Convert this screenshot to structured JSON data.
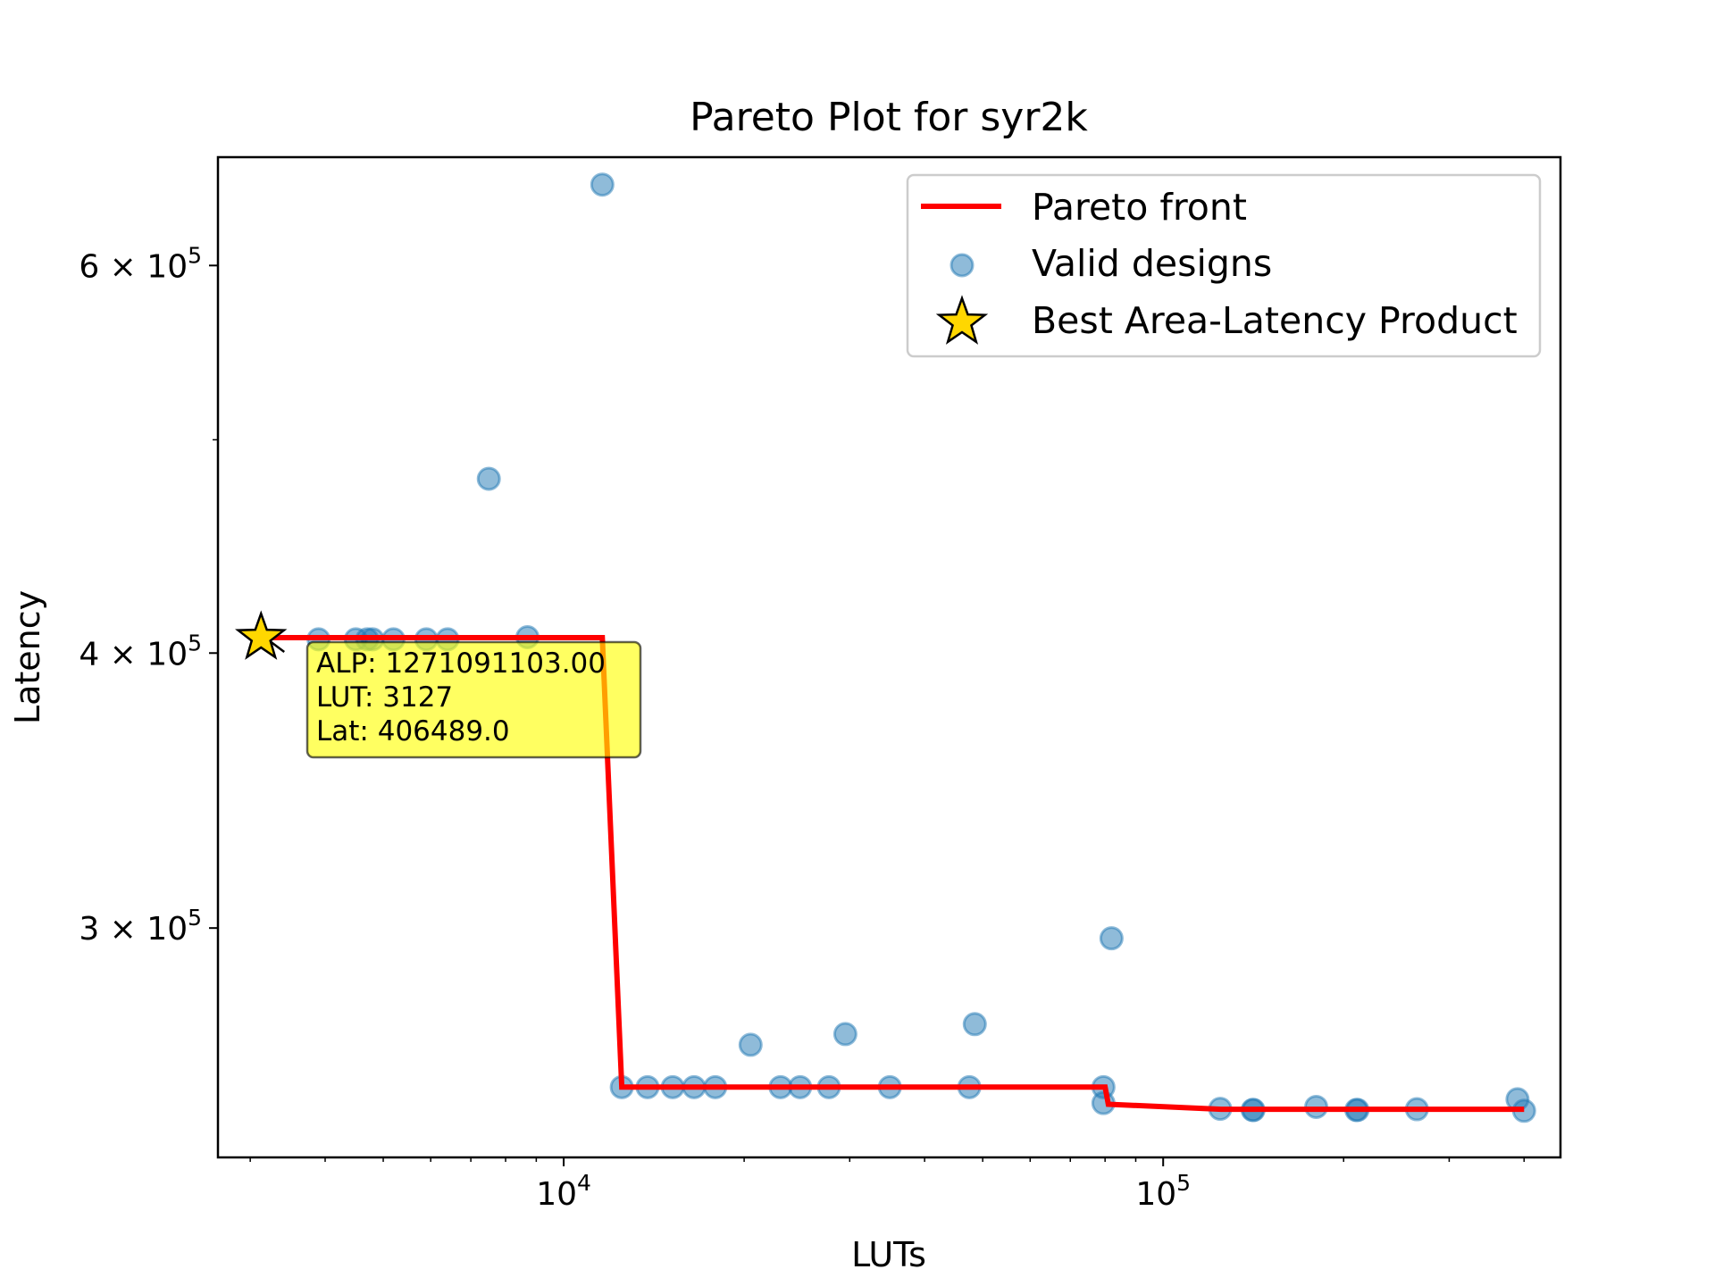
{
  "chart_data": {
    "type": "scatter",
    "title": "Pareto Plot for syr2k",
    "xlabel": "LUTs",
    "ylabel": "Latency",
    "xscale": "log",
    "yscale": "log",
    "xlim": [
      2650,
      460000
    ],
    "ylim": [
      236000,
      672000
    ],
    "x_ticks": [
      {
        "value": 10000,
        "label_base": "10",
        "label_exp": "4"
      },
      {
        "value": 100000,
        "label_base": "10",
        "label_exp": "5"
      }
    ],
    "y_ticks": [
      {
        "value": 300000,
        "label_base": "3 × 10",
        "label_exp": "5"
      },
      {
        "value": 400000,
        "label_base": "4 × 10",
        "label_exp": "5"
      },
      {
        "value": 600000,
        "label_base": "6 × 10",
        "label_exp": "5"
      }
    ],
    "grid": false,
    "legend_position": "top-right",
    "colors": {
      "pareto": "#ff0000",
      "points": "#1f77b4",
      "star": "#ffd700",
      "annotation_bg": "#ffff00"
    },
    "series": [
      {
        "name": "Pareto front",
        "type": "line",
        "points": [
          [
            3127,
            406489
          ],
          [
            11600,
            406489
          ],
          [
            12500,
            254000
          ],
          [
            80000,
            254000
          ],
          [
            81000,
            249500
          ],
          [
            125000,
            248200
          ],
          [
            400000,
            248200
          ]
        ]
      },
      {
        "name": "Valid designs",
        "type": "scatter",
        "points": [
          [
            11600,
            653000
          ],
          [
            7500,
            480000
          ],
          [
            3900,
            405800
          ],
          [
            4500,
            405800
          ],
          [
            4700,
            405800
          ],
          [
            4800,
            405800
          ],
          [
            5200,
            405800
          ],
          [
            5900,
            405800
          ],
          [
            6400,
            405800
          ],
          [
            8700,
            406700
          ],
          [
            12500,
            254000
          ],
          [
            13800,
            254000
          ],
          [
            15200,
            254000
          ],
          [
            16500,
            254000
          ],
          [
            17900,
            254000
          ],
          [
            23000,
            254000
          ],
          [
            24800,
            254000
          ],
          [
            27700,
            254000
          ],
          [
            35000,
            254000
          ],
          [
            47500,
            254000
          ],
          [
            79500,
            254000
          ],
          [
            20500,
            265500
          ],
          [
            29500,
            268500
          ],
          [
            48500,
            271300
          ],
          [
            82000,
            296800
          ],
          [
            79500,
            249800
          ],
          [
            124500,
            248300
          ],
          [
            141000,
            248000
          ],
          [
            141500,
            248000
          ],
          [
            180000,
            248800
          ],
          [
            210000,
            248000
          ],
          [
            211000,
            248000
          ],
          [
            265000,
            248200
          ],
          [
            390000,
            250800
          ],
          [
            400000,
            247800
          ]
        ]
      },
      {
        "name": "Best Area-Latency Product",
        "type": "marker",
        "points": [
          [
            3127,
            406489
          ]
        ]
      }
    ],
    "annotation": {
      "lines": [
        "ALP: 1271091103.00",
        "LUT: 3127",
        "Lat: 406489.0"
      ]
    }
  }
}
